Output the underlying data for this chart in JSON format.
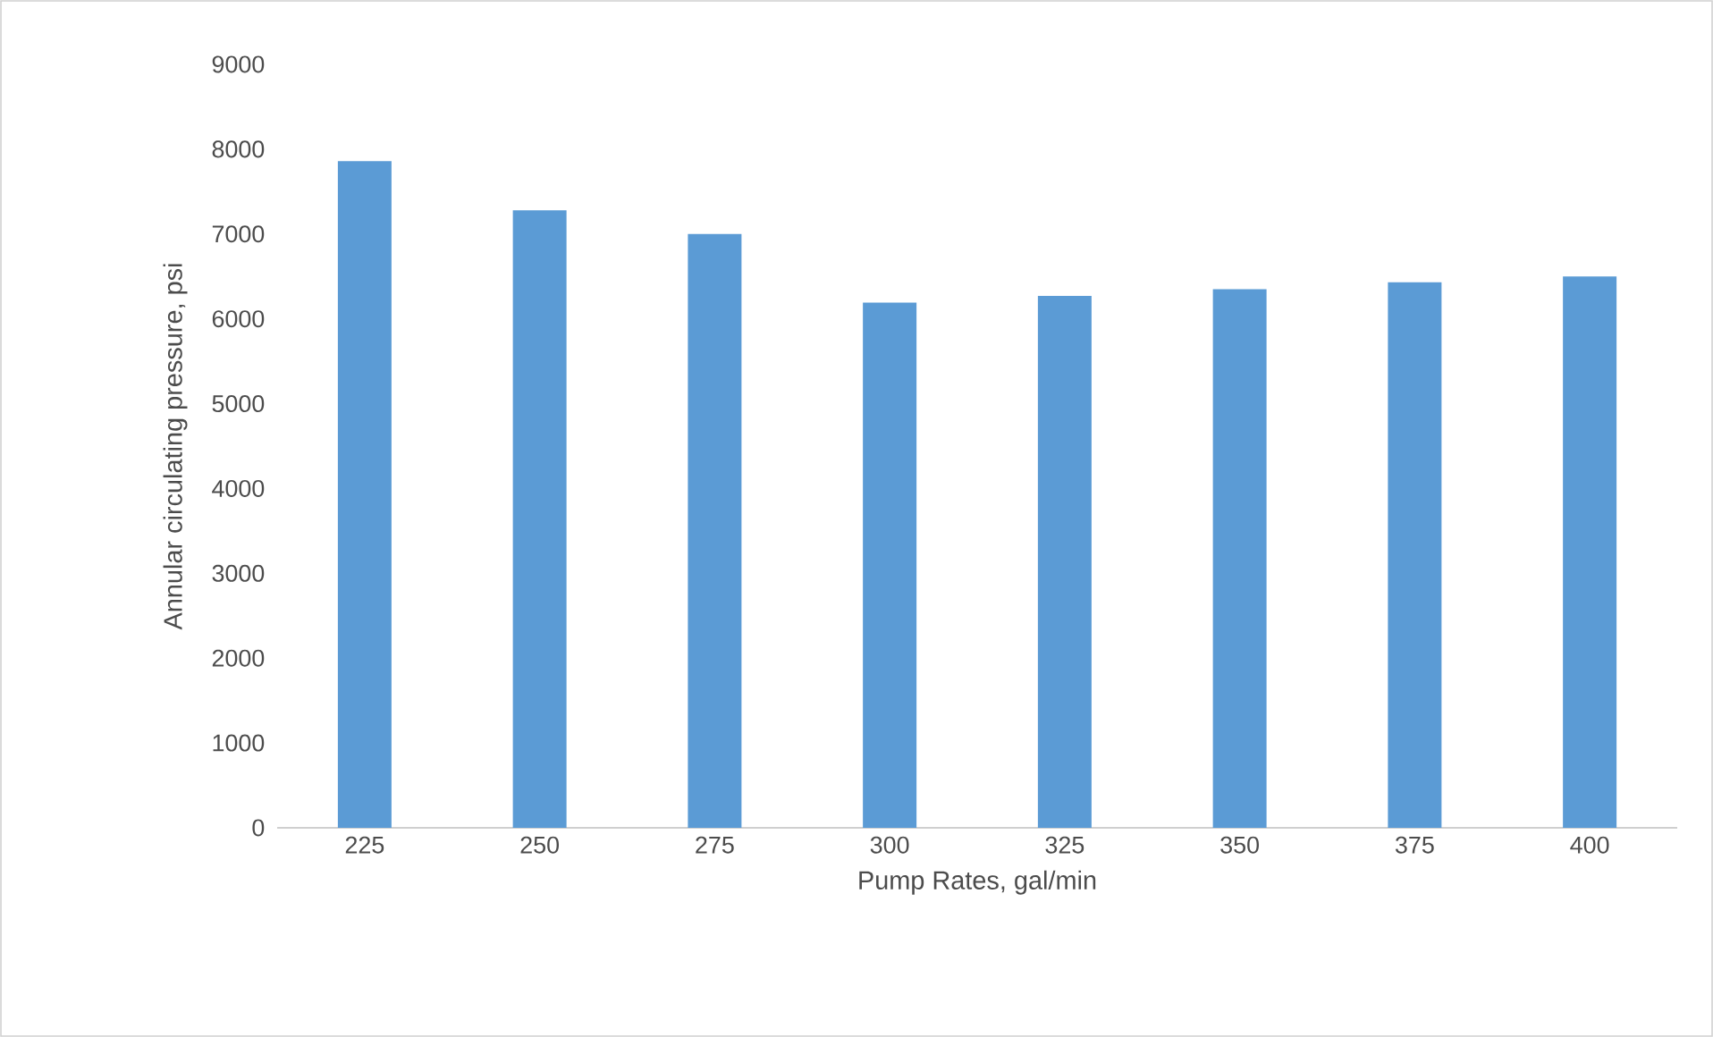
{
  "chart_data": {
    "type": "bar",
    "xlabel": "Pump Rates, gal/min",
    "ylabel": "Annular circulating pressure, psi",
    "categories": [
      "225",
      "250",
      "275",
      "300",
      "325",
      "350",
      "375",
      "400"
    ],
    "values": [
      7860,
      7280,
      7000,
      6190,
      6270,
      6350,
      6430,
      6500
    ],
    "color": "#5b9bd5",
    "ylim": [
      0,
      9000
    ],
    "yticks": [
      0,
      1000,
      2000,
      3000,
      4000,
      5000,
      6000,
      7000,
      8000,
      9000
    ],
    "grid": false
  }
}
